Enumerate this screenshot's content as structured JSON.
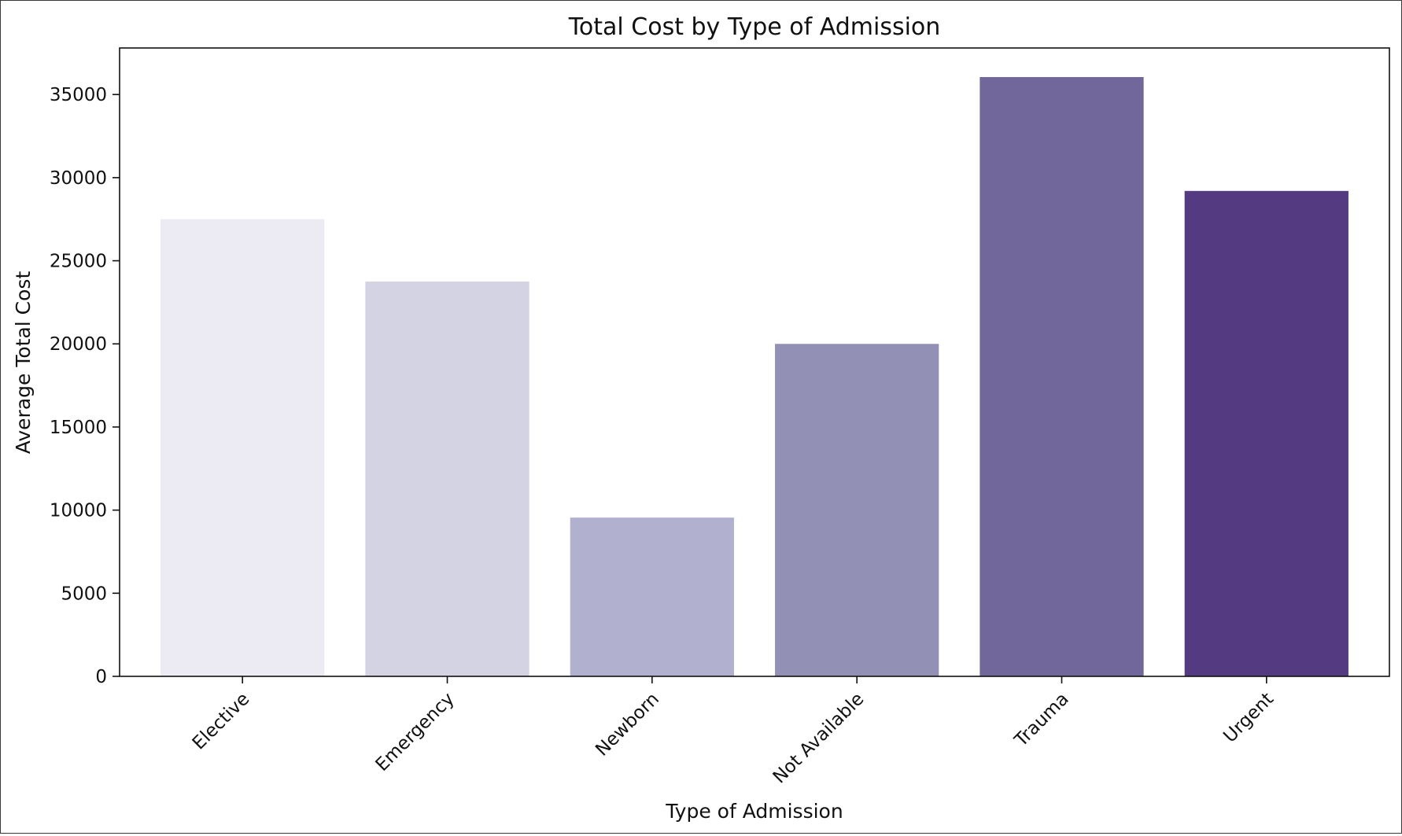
{
  "chart_data": {
    "type": "bar",
    "title": "Total Cost by Type of Admission",
    "xlabel": "Type of Admission",
    "ylabel": "Average Total Cost",
    "categories": [
      "Elective",
      "Emergency",
      "Newborn",
      "Not Available",
      "Trauma",
      "Urgent"
    ],
    "values": [
      27500,
      23750,
      9550,
      20000,
      36050,
      29200
    ],
    "colors": [
      "#ecebf3",
      "#d4d3e4",
      "#b1b1cf",
      "#9390b6",
      "#72679b",
      "#543a81"
    ],
    "ylim": [
      0,
      37800
    ],
    "yticks": [
      0,
      5000,
      10000,
      15000,
      20000,
      25000,
      30000,
      35000
    ],
    "grid": false
  }
}
